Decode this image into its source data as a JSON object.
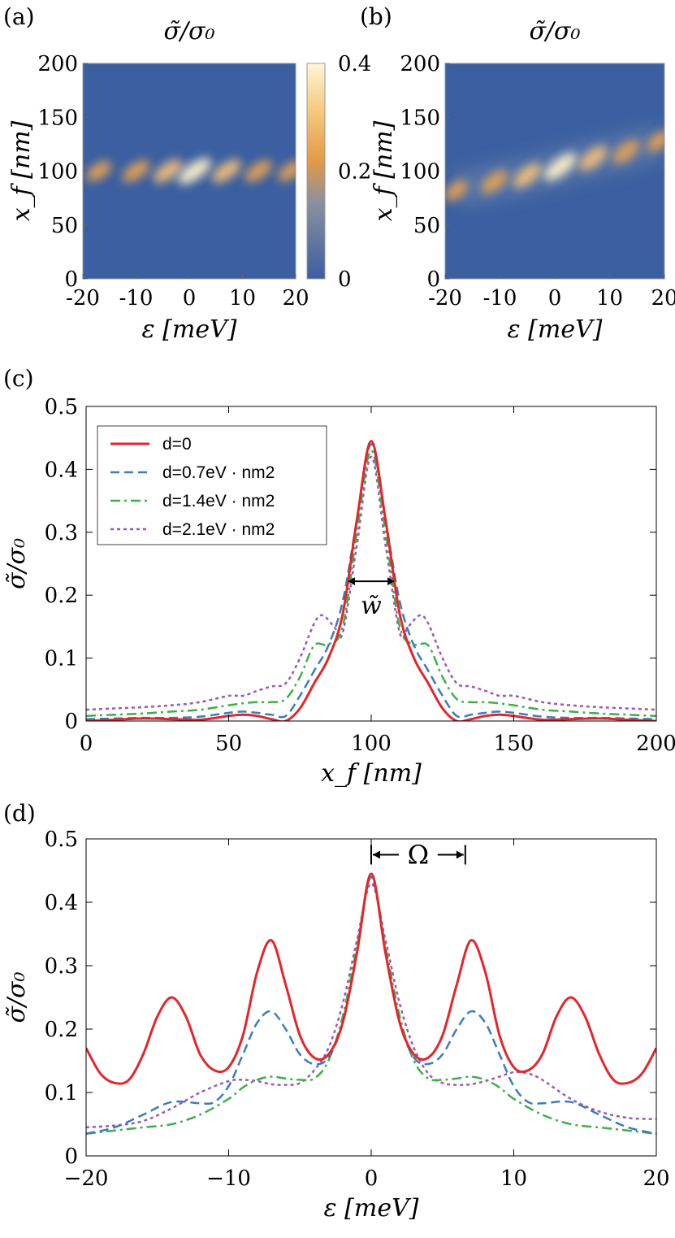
{
  "chart_data": [
    {
      "panel": "(a)",
      "type": "heatmap",
      "title": "σ̃/σ₀",
      "xlabel": "ε [meV]",
      "ylabel": "x_f [nm]",
      "xlim": [
        -20,
        20
      ],
      "ylim": [
        0,
        200
      ],
      "xticks": [
        "-20",
        "-10",
        "0",
        "10",
        "20"
      ],
      "yticks": [
        "0",
        "50",
        "100",
        "150",
        "200"
      ],
      "colorbar": {
        "ticks": [
          "0",
          "0.2",
          "0.4"
        ],
        "range": [
          0,
          0.4
        ]
      },
      "blobs": [
        {
          "eps": -17,
          "xf": 100,
          "value": 0.22
        },
        {
          "eps": -10,
          "xf": 100,
          "value": 0.28
        },
        {
          "eps": -4,
          "xf": 100,
          "value": 0.33
        },
        {
          "eps": 1,
          "xf": 100,
          "value": 0.44
        },
        {
          "eps": 7,
          "xf": 100,
          "value": 0.33
        },
        {
          "eps": 13,
          "xf": 100,
          "value": 0.28
        },
        {
          "eps": 19,
          "xf": 100,
          "value": 0.22
        }
      ],
      "colors": {
        "low": "#3b5fa0",
        "mid": "#e49a45",
        "high": "#fff6d8"
      }
    },
    {
      "panel": "(b)",
      "type": "heatmap",
      "title": "σ̃/σ₀",
      "xlabel": "ε [meV]",
      "ylabel": "x_f [nm]",
      "xlim": [
        -20,
        20
      ],
      "ylim": [
        0,
        200
      ],
      "xticks": [
        "-20",
        "-10",
        "0",
        "10",
        "20"
      ],
      "yticks": [
        "0",
        "50",
        "100",
        "150",
        "200"
      ],
      "blobs": [
        {
          "eps": -18,
          "xf": 82,
          "value": 0.2
        },
        {
          "eps": -11,
          "xf": 90,
          "value": 0.28
        },
        {
          "eps": -5,
          "xf": 96,
          "value": 0.33
        },
        {
          "eps": 1,
          "xf": 104,
          "value": 0.44
        },
        {
          "eps": 7,
          "xf": 112,
          "value": 0.33
        },
        {
          "eps": 13,
          "xf": 118,
          "value": 0.28
        },
        {
          "eps": 19,
          "xf": 128,
          "value": 0.22
        }
      ]
    },
    {
      "panel": "(c)",
      "type": "line",
      "xlabel": "x_f [nm]",
      "ylabel": "σ̃/σ₀",
      "xlim": [
        0,
        200
      ],
      "ylim": [
        0,
        0.5
      ],
      "xticks": [
        "0",
        "50",
        "100",
        "150",
        "200"
      ],
      "yticks": [
        "0",
        "0.1",
        "0.2",
        "0.3",
        "0.4",
        "0.5"
      ],
      "annotation": "w̃",
      "legend_position": "top-left",
      "series": [
        {
          "name": "d=0",
          "color": "#e3262b",
          "dash": "",
          "width": 3,
          "x": [
            0,
            10,
            20,
            30,
            40,
            50,
            55,
            60,
            65,
            70,
            75,
            80,
            85,
            90,
            95,
            100,
            105,
            110,
            115,
            120,
            125,
            130,
            135,
            140,
            145,
            150,
            160,
            170,
            180,
            190,
            200
          ],
          "y": [
            0,
            0.002,
            0.004,
            0.003,
            0.002,
            0.008,
            0.01,
            0.008,
            0.003,
            0.0,
            0.02,
            0.06,
            0.1,
            0.17,
            0.32,
            0.445,
            0.32,
            0.17,
            0.1,
            0.06,
            0.02,
            0.0,
            0.003,
            0.008,
            0.01,
            0.008,
            0.002,
            0.003,
            0.004,
            0.002,
            0.0
          ]
        },
        {
          "name": "d=0.7eV · nm2",
          "color": "#3a7dbb",
          "dash": "11,6",
          "width": 2.5,
          "x": [
            0,
            10,
            20,
            30,
            40,
            50,
            55,
            60,
            65,
            70,
            75,
            80,
            85,
            90,
            95,
            100,
            105,
            110,
            115,
            120,
            125,
            130,
            135,
            140,
            145,
            150,
            160,
            170,
            180,
            190,
            200
          ],
          "y": [
            0.003,
            0.004,
            0.005,
            0.005,
            0.007,
            0.013,
            0.015,
            0.013,
            0.01,
            0.008,
            0.04,
            0.08,
            0.12,
            0.19,
            0.32,
            0.44,
            0.32,
            0.19,
            0.12,
            0.08,
            0.04,
            0.008,
            0.01,
            0.013,
            0.015,
            0.013,
            0.007,
            0.005,
            0.005,
            0.004,
            0.003
          ]
        },
        {
          "name": "d=1.4eV · nm2",
          "color": "#3fae49",
          "dash": "12,5,3,5",
          "width": 2.5,
          "x": [
            0,
            10,
            20,
            30,
            40,
            50,
            55,
            60,
            65,
            70,
            75,
            80,
            85,
            90,
            95,
            100,
            105,
            110,
            115,
            120,
            125,
            130,
            135,
            140,
            145,
            150,
            160,
            170,
            180,
            190,
            200
          ],
          "y": [
            0.008,
            0.01,
            0.012,
            0.015,
            0.018,
            0.025,
            0.028,
            0.03,
            0.03,
            0.035,
            0.07,
            0.12,
            0.122,
            0.15,
            0.3,
            0.43,
            0.3,
            0.15,
            0.122,
            0.12,
            0.07,
            0.035,
            0.03,
            0.03,
            0.028,
            0.025,
            0.018,
            0.015,
            0.012,
            0.01,
            0.008
          ]
        },
        {
          "name": "d=2.1eV · nm2",
          "color": "#9b59b6",
          "dash": "4,4",
          "width": 2.5,
          "x": [
            0,
            10,
            20,
            30,
            40,
            50,
            55,
            60,
            65,
            70,
            75,
            80,
            83,
            87,
            90,
            95,
            100,
            105,
            110,
            113,
            117,
            120,
            125,
            130,
            135,
            140,
            145,
            150,
            160,
            170,
            180,
            190,
            200
          ],
          "y": [
            0.018,
            0.02,
            0.022,
            0.025,
            0.03,
            0.04,
            0.04,
            0.048,
            0.055,
            0.06,
            0.1,
            0.155,
            0.168,
            0.15,
            0.14,
            0.28,
            0.42,
            0.28,
            0.14,
            0.15,
            0.168,
            0.155,
            0.1,
            0.06,
            0.055,
            0.048,
            0.04,
            0.04,
            0.03,
            0.025,
            0.022,
            0.02,
            0.018
          ]
        }
      ]
    },
    {
      "panel": "(d)",
      "type": "line",
      "xlabel": "ε [meV]",
      "ylabel": "σ̃/σ₀",
      "xlim": [
        -20,
        20
      ],
      "ylim": [
        0,
        0.5
      ],
      "xticks": [
        "−20",
        "−10",
        "0",
        "10",
        "20"
      ],
      "yticks": [
        "0",
        "0.1",
        "0.2",
        "0.3",
        "0.4",
        "0.5"
      ],
      "annotation": "Ω",
      "series": [
        {
          "name": "d=0",
          "color": "#e3262b",
          "dash": "",
          "width": 3,
          "x": [
            -20,
            -19,
            -18,
            -17,
            -16,
            -15,
            -14,
            -13,
            -12,
            -11,
            -10,
            -9,
            -8,
            -7,
            -6,
            -5,
            -4,
            -3,
            -2,
            -1,
            0,
            1,
            2,
            3,
            4,
            5,
            6,
            7,
            8,
            9,
            10,
            11,
            12,
            13,
            14,
            15,
            16,
            17,
            18,
            19,
            20
          ],
          "y": [
            0.17,
            0.13,
            0.115,
            0.12,
            0.16,
            0.22,
            0.25,
            0.22,
            0.16,
            0.135,
            0.14,
            0.19,
            0.29,
            0.34,
            0.27,
            0.19,
            0.155,
            0.16,
            0.21,
            0.32,
            0.445,
            0.32,
            0.21,
            0.16,
            0.155,
            0.19,
            0.27,
            0.34,
            0.29,
            0.19,
            0.14,
            0.135,
            0.16,
            0.22,
            0.25,
            0.22,
            0.16,
            0.12,
            0.115,
            0.13,
            0.17
          ]
        },
        {
          "name": "d=0.7eV · nm2",
          "color": "#3a7dbb",
          "dash": "11,6",
          "width": 2.5,
          "x": [
            -20,
            -18,
            -16,
            -14,
            -12,
            -11,
            -10,
            -9,
            -8,
            -7,
            -6,
            -5,
            -4,
            -3,
            -2,
            -1,
            0,
            1,
            2,
            3,
            4,
            5,
            6,
            7,
            8,
            9,
            10,
            11,
            12,
            14,
            16,
            18,
            20
          ],
          "y": [
            0.035,
            0.045,
            0.065,
            0.085,
            0.083,
            0.085,
            0.11,
            0.16,
            0.21,
            0.228,
            0.2,
            0.16,
            0.145,
            0.155,
            0.21,
            0.32,
            0.44,
            0.32,
            0.21,
            0.155,
            0.145,
            0.16,
            0.2,
            0.228,
            0.21,
            0.16,
            0.11,
            0.085,
            0.083,
            0.085,
            0.065,
            0.045,
            0.035
          ]
        },
        {
          "name": "d=1.4eV · nm2",
          "color": "#3fae49",
          "dash": "12,5,3,5",
          "width": 2.5,
          "x": [
            -20,
            -18,
            -16,
            -14,
            -12,
            -10,
            -9,
            -8,
            -7,
            -6,
            -5,
            -4,
            -3,
            -2,
            -1,
            0,
            1,
            2,
            3,
            4,
            5,
            6,
            7,
            8,
            9,
            10,
            12,
            14,
            16,
            18,
            20
          ],
          "y": [
            0.035,
            0.04,
            0.045,
            0.05,
            0.065,
            0.09,
            0.108,
            0.12,
            0.125,
            0.122,
            0.12,
            0.122,
            0.15,
            0.22,
            0.33,
            0.44,
            0.33,
            0.22,
            0.15,
            0.122,
            0.12,
            0.122,
            0.125,
            0.12,
            0.108,
            0.09,
            0.065,
            0.05,
            0.045,
            0.04,
            0.035
          ]
        },
        {
          "name": "d=2.1eV · nm2",
          "color": "#9b59b6",
          "dash": "4,4",
          "width": 2.5,
          "x": [
            -20,
            -18,
            -16,
            -14,
            -12,
            -10,
            -9,
            -8,
            -7,
            -6,
            -5,
            -4,
            -3,
            -2,
            -1,
            0,
            1,
            2,
            3,
            4,
            5,
            6,
            7,
            8,
            9,
            10,
            11,
            12,
            14,
            16,
            18,
            20
          ],
          "y": [
            0.045,
            0.048,
            0.055,
            0.075,
            0.1,
            0.118,
            0.12,
            0.118,
            0.113,
            0.112,
            0.115,
            0.135,
            0.17,
            0.24,
            0.34,
            0.43,
            0.34,
            0.24,
            0.17,
            0.13,
            0.115,
            0.112,
            0.113,
            0.118,
            0.125,
            0.132,
            0.13,
            0.12,
            0.09,
            0.07,
            0.06,
            0.058
          ]
        }
      ]
    }
  ]
}
